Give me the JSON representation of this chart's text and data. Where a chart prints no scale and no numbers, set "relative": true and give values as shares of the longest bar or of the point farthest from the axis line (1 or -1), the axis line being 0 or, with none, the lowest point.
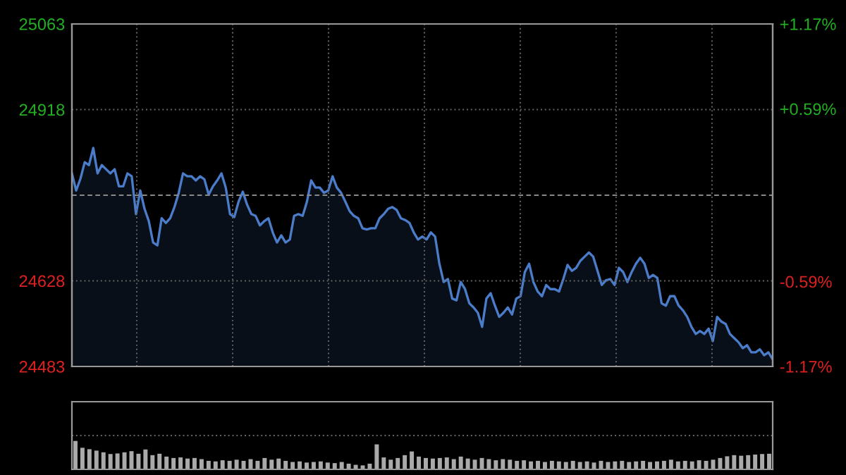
{
  "chart_data": [
    {
      "type": "area",
      "color": "#4a7cc9",
      "categories": [
        null,
        null,
        null,
        null,
        null,
        null,
        null,
        null,
        null,
        null,
        null,
        null,
        null,
        null,
        null,
        null,
        null,
        null,
        null,
        null,
        null,
        null,
        null,
        null,
        null,
        null,
        null,
        null,
        null,
        null,
        null,
        null,
        null,
        null,
        null,
        null,
        null,
        null,
        null,
        null,
        null,
        null,
        null,
        null,
        null,
        null,
        null,
        null,
        null,
        null,
        null,
        null,
        null,
        null,
        null,
        null,
        null,
        null,
        null,
        null,
        null,
        null,
        null,
        null,
        null,
        null,
        null,
        null,
        null,
        null,
        null,
        null,
        null,
        null,
        null,
        null,
        null,
        null,
        null,
        null,
        null,
        null,
        null,
        null,
        null,
        null,
        null,
        null,
        null,
        null,
        null,
        null,
        null,
        null,
        null,
        null,
        null,
        null,
        null,
        null,
        null,
        null,
        null,
        null,
        null,
        null,
        null,
        null,
        null,
        null,
        null,
        null,
        null,
        null,
        null,
        null,
        null,
        null,
        null,
        null,
        null,
        null,
        null,
        null,
        null,
        null,
        null,
        null,
        null,
        null,
        null,
        null,
        null,
        null,
        null,
        null,
        null,
        null,
        null,
        null,
        null,
        null,
        null,
        null,
        null,
        null,
        null,
        null,
        null,
        null,
        null,
        null,
        null,
        null,
        null,
        null,
        null,
        null,
        null,
        null,
        null,
        null,
        null,
        null,
        null
      ],
      "values": [
        24810,
        24781,
        24801,
        24829,
        24824,
        24853,
        24810,
        24824,
        24817,
        24810,
        24817,
        24788,
        24788,
        24810,
        24805,
        24741,
        24781,
        24750,
        24729,
        24693,
        24688,
        24734,
        24726,
        24734,
        24753,
        24777,
        24810,
        24805,
        24805,
        24798,
        24805,
        24800,
        24774,
        24788,
        24798,
        24810,
        24786,
        24741,
        24736,
        24762,
        24779,
        24757,
        24741,
        24738,
        24722,
        24729,
        24734,
        24710,
        24693,
        24705,
        24693,
        24698,
        24738,
        24741,
        24738,
        24762,
        24798,
        24786,
        24786,
        24777,
        24781,
        24805,
        24786,
        24777,
        24762,
        24746,
        24738,
        24734,
        24717,
        24715,
        24717,
        24717,
        24734,
        24741,
        24750,
        24753,
        24748,
        24734,
        24731,
        24726,
        24710,
        24698,
        24703,
        24698,
        24710,
        24703,
        24657,
        24626,
        24631,
        24598,
        24595,
        24626,
        24614,
        24590,
        24583,
        24574,
        24550,
        24598,
        24607,
        24586,
        24567,
        24574,
        24583,
        24571,
        24598,
        24602,
        24643,
        24657,
        24626,
        24610,
        24602,
        24621,
        24614,
        24614,
        24610,
        24631,
        24655,
        24645,
        24650,
        24662,
        24669,
        24676,
        24669,
        24645,
        24621,
        24629,
        24631,
        24621,
        24650,
        24643,
        24626,
        24643,
        24657,
        24667,
        24657,
        24633,
        24638,
        24633,
        24590,
        24586,
        24602,
        24602,
        24586,
        24578,
        24567,
        24550,
        24538,
        24543,
        24538,
        24547,
        24526,
        24567,
        24559,
        24555,
        24538,
        24531,
        24524,
        24514,
        24519,
        24507,
        24507,
        24512,
        24502,
        24507,
        24495
      ],
      "ylim": [
        24483,
        25063
      ],
      "yticks": [
        24483,
        24628,
        24918,
        25063
      ],
      "y2lim": [
        -1.17,
        1.17
      ],
      "y2ticks": [
        {
          "value": -1.17,
          "label": "-1.17%"
        },
        {
          "value": -0.59,
          "label": "-0.59%"
        },
        {
          "value": 0.59,
          "label": "+0.59%"
        },
        {
          "value": 1.17,
          "label": "+1.17%"
        }
      ],
      "ref_lines": [
        {
          "axis": "y",
          "value": 24773,
          "color": "#888888",
          "line_style": "dashed"
        }
      ],
      "grid": true
    },
    {
      "type": "bar",
      "relative": true,
      "color": "#aaaaaa",
      "categories": [
        null,
        null,
        null,
        null,
        null,
        null,
        null,
        null,
        null,
        null,
        null,
        null,
        null,
        null,
        null,
        null,
        null,
        null,
        null,
        null,
        null,
        null,
        null,
        null,
        null,
        null,
        null,
        null,
        null,
        null,
        null,
        null,
        null,
        null,
        null,
        null,
        null,
        null,
        null,
        null,
        null,
        null,
        null,
        null,
        null,
        null,
        null,
        null,
        null,
        null,
        null,
        null,
        null,
        null,
        null,
        null,
        null,
        null,
        null,
        null,
        null,
        null,
        null,
        null,
        null,
        null,
        null,
        null,
        null,
        null,
        null,
        null,
        null,
        null,
        null,
        null,
        null,
        null,
        null,
        null,
        null,
        null,
        null,
        null,
        null,
        null,
        null,
        null,
        null,
        null,
        null,
        null,
        null,
        null,
        null,
        null,
        null,
        null,
        null,
        null
      ],
      "values": [
        1.0,
        0.76,
        0.71,
        0.66,
        0.6,
        0.54,
        0.56,
        0.6,
        0.64,
        0.55,
        0.7,
        0.5,
        0.55,
        0.45,
        0.4,
        0.42,
        0.38,
        0.4,
        0.36,
        0.3,
        0.28,
        0.32,
        0.3,
        0.34,
        0.3,
        0.36,
        0.3,
        0.4,
        0.34,
        0.38,
        0.3,
        0.26,
        0.28,
        0.24,
        0.26,
        0.28,
        0.24,
        0.22,
        0.26,
        0.2,
        0.16,
        0.14,
        0.2,
        0.88,
        0.42,
        0.34,
        0.4,
        0.5,
        0.63,
        0.45,
        0.4,
        0.38,
        0.4,
        0.42,
        0.36,
        0.45,
        0.38,
        0.34,
        0.4,
        0.36,
        0.32,
        0.36,
        0.34,
        0.3,
        0.32,
        0.28,
        0.3,
        0.26,
        0.3,
        0.28,
        0.26,
        0.3,
        0.26,
        0.28,
        0.24,
        0.3,
        0.26,
        0.28,
        0.3,
        0.26,
        0.28,
        0.3,
        0.26,
        0.28,
        0.3,
        0.34,
        0.28,
        0.3,
        0.28,
        0.32,
        0.3,
        0.34,
        0.4,
        0.46,
        0.5,
        0.48,
        0.5,
        0.52,
        0.54,
        0.55
      ]
    }
  ]
}
